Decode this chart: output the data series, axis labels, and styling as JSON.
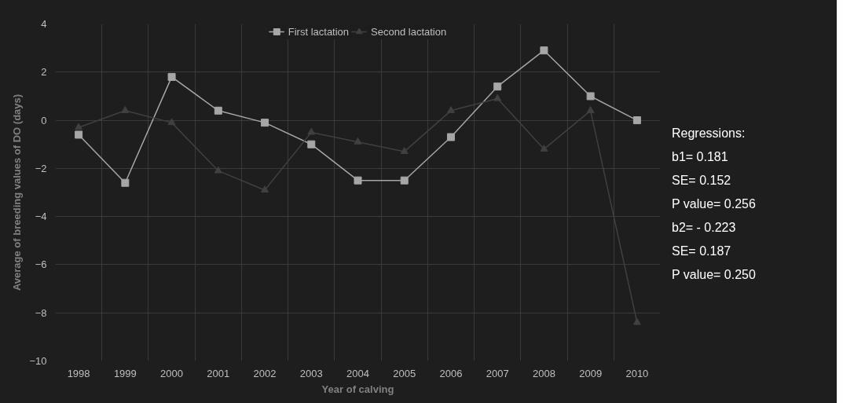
{
  "chart_data": {
    "type": "line",
    "categories": [
      "1998",
      "1999",
      "2000",
      "2001",
      "2002",
      "2003",
      "2004",
      "2005",
      "2006",
      "2007",
      "2008",
      "2009",
      "2010"
    ],
    "xlabel": "Year of calving",
    "ylabel": "Average of breeding values of DO (days)",
    "series": [
      {
        "name": "First lactation",
        "color": "#a6a6a6",
        "marker": "square",
        "values": [
          -0.6,
          -2.6,
          1.8,
          0.4,
          -0.1,
          -1.0,
          -2.5,
          -2.5,
          -0.7,
          1.4,
          2.9,
          1.0,
          0.0
        ]
      },
      {
        "name": "Second lactation",
        "color": "#404040",
        "marker": "triangle",
        "values": [
          -0.3,
          0.4,
          -0.1,
          -2.1,
          -2.9,
          -0.5,
          -0.9,
          -1.3,
          0.4,
          0.9,
          -1.2,
          0.4,
          -8.4
        ]
      }
    ],
    "ylim": [
      -10,
      4
    ],
    "yticks": [
      -10,
      -8,
      -6,
      -4,
      -2,
      0,
      2,
      4
    ],
    "grid": true,
    "legend": "top",
    "annotations": [
      "Regressions:",
      "b1= 0.181",
      "SE= 0.152",
      "P value= 0.256",
      "b2= - 0.223",
      "SE= 0.187",
      "P value= 0.250"
    ]
  }
}
